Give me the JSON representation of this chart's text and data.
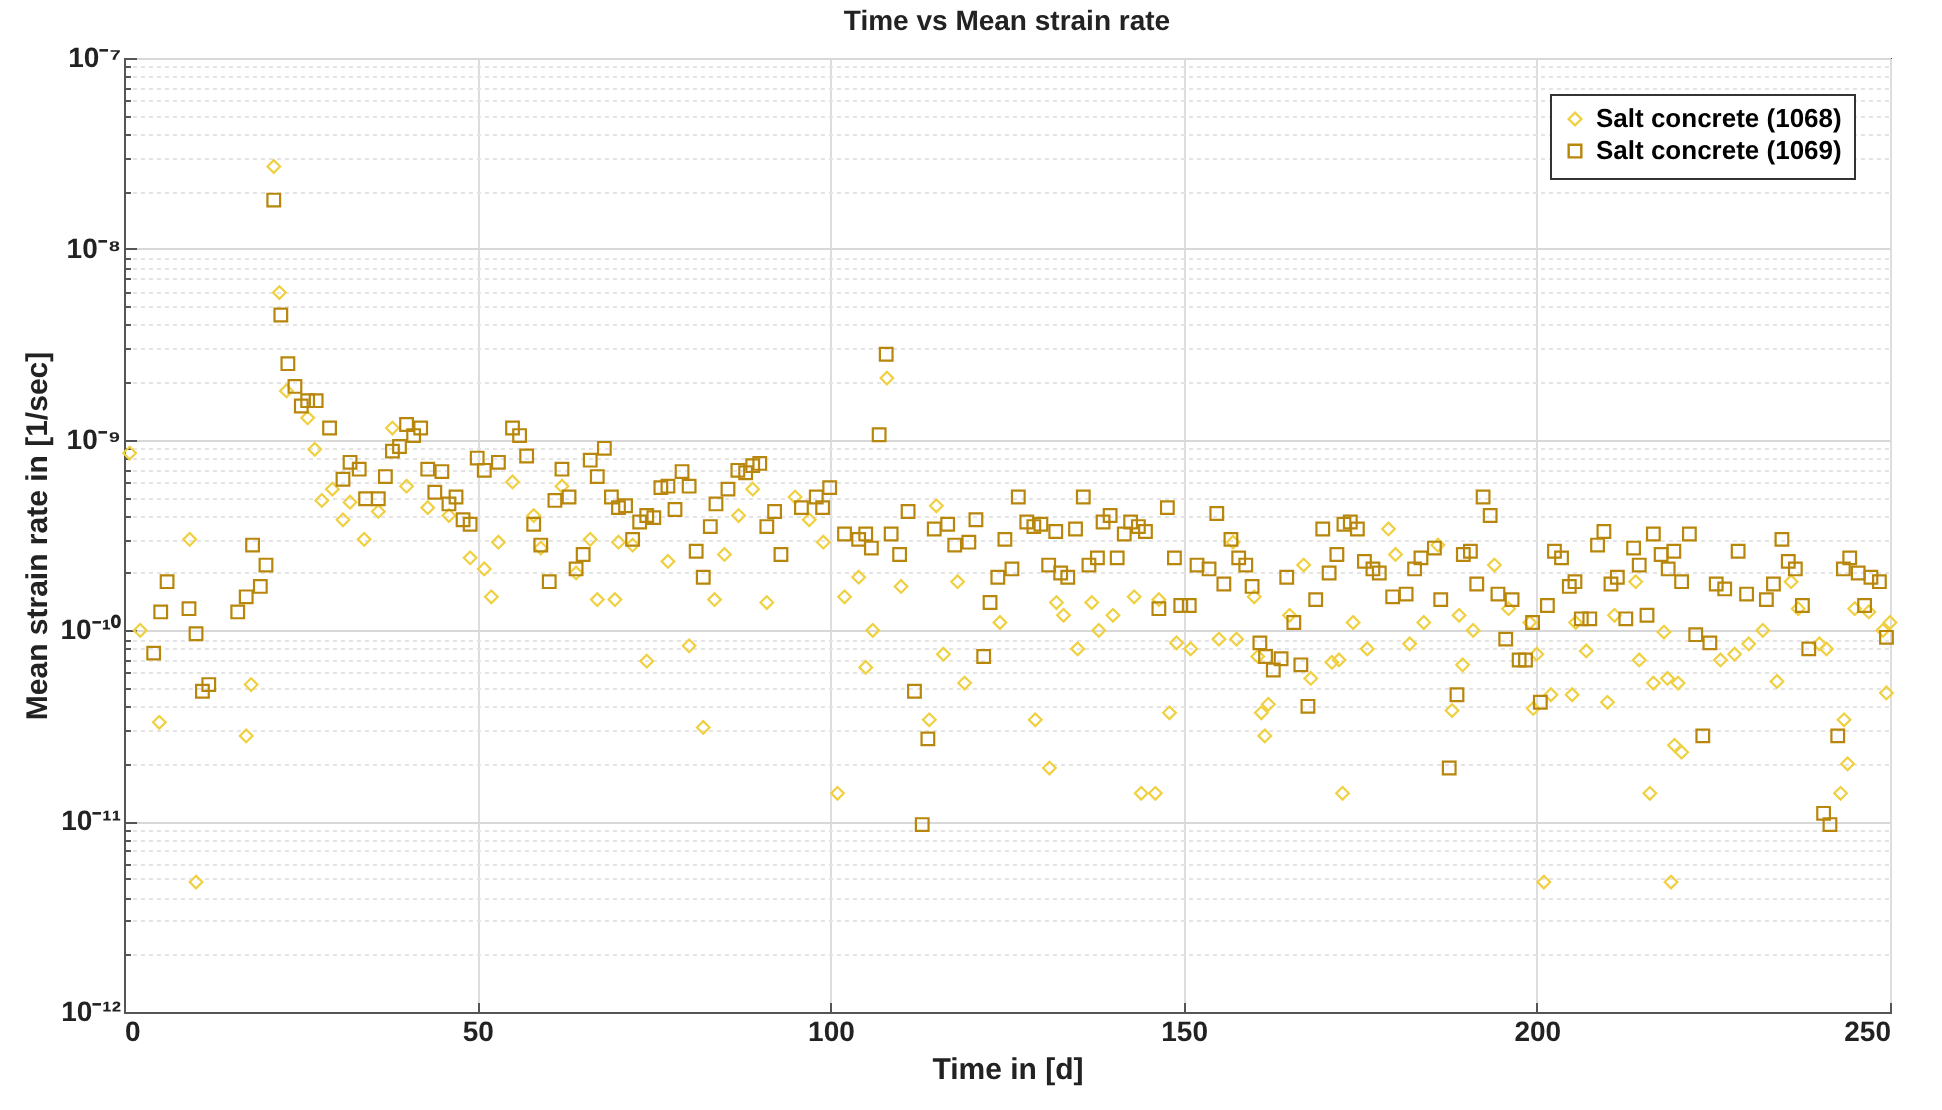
{
  "chart_data": {
    "type": "scatter",
    "title": "Time vs Mean strain rate",
    "xlabel": "Time in [d]",
    "ylabel": "Mean strain rate in [1/sec]",
    "xlim": [
      0,
      250
    ],
    "xticks": [
      0,
      50,
      100,
      150,
      200,
      250
    ],
    "ylim": [
      1e-12,
      1e-07
    ],
    "yticks": [
      {
        "value": 1e-12,
        "label": "10⁻¹²"
      },
      {
        "value": 1e-11,
        "label": "10⁻¹¹"
      },
      {
        "value": 1e-10,
        "label": "10⁻¹⁰"
      },
      {
        "value": 1e-09,
        "label": "10⁻⁹"
      },
      {
        "value": 1e-08,
        "label": "10⁻⁸"
      },
      {
        "value": 1e-07,
        "label": "10⁻⁷"
      }
    ],
    "log": true,
    "grid": true,
    "legend": "top right",
    "series": [
      {
        "name": "Salt concrete (1068)",
        "color": "#f0d040",
        "marker": "diamond",
        "x": [
          0.8,
          2.3,
          5,
          9.3,
          10.2,
          17.3,
          18,
          21.2,
          22,
          23,
          26,
          27,
          28,
          29.5,
          31,
          32,
          34,
          36,
          38,
          40,
          43,
          46,
          49,
          51,
          52,
          53,
          55,
          58,
          59,
          62,
          64,
          66,
          67,
          69.5,
          70,
          72,
          74,
          77,
          80,
          82,
          83.6,
          85,
          87,
          89,
          91,
          95,
          97,
          99,
          101,
          102,
          104,
          105,
          106,
          108,
          110,
          114,
          115,
          116,
          118,
          119,
          124,
          129,
          131,
          132,
          133,
          135,
          137,
          138,
          140,
          143,
          144,
          146,
          146.5,
          148,
          149,
          151,
          155,
          157,
          157.5,
          160,
          160.5,
          161,
          161.5,
          162,
          165,
          167,
          168,
          171,
          172,
          172.5,
          174,
          176,
          179,
          180,
          182,
          184,
          186,
          188,
          189,
          189.5,
          191,
          194,
          196,
          199,
          199.5,
          200,
          201,
          202,
          205,
          205.5,
          207,
          210,
          211,
          214,
          214.5,
          216,
          216.5,
          218,
          218.5,
          219,
          219.5,
          220,
          220.5,
          226,
          228,
          230,
          232,
          234,
          236,
          237,
          240,
          241,
          243,
          243.5,
          244,
          245,
          247,
          249,
          249.5,
          250
        ],
        "values": [
          8.5e-10,
          1e-10,
          3.3e-11,
          3e-10,
          4.8e-12,
          2.8e-11,
          5.2e-11,
          2.7e-08,
          5.9e-09,
          1.8e-09,
          1.3e-09,
          8.9e-10,
          4.8e-10,
          5.5e-10,
          3.8e-10,
          4.7e-10,
          3e-10,
          4.2e-10,
          1.15e-09,
          5.7e-10,
          4.4e-10,
          4e-10,
          2.4e-10,
          2.1e-10,
          1.5e-10,
          2.9e-10,
          6e-10,
          4e-10,
          2.7e-10,
          5.7e-10,
          2e-10,
          3e-10,
          1.45e-10,
          1.45e-10,
          2.9e-10,
          2.8e-10,
          6.9e-11,
          2.3e-10,
          8.3e-11,
          3.1e-11,
          1.45e-10,
          2.5e-10,
          4e-10,
          5.5e-10,
          1.4e-10,
          5e-10,
          3.8e-10,
          2.9e-10,
          1.4e-11,
          1.5e-10,
          1.9e-10,
          6.4e-11,
          1e-10,
          2.1e-09,
          1.7e-10,
          3.4e-11,
          4.5e-10,
          7.5e-11,
          1.8e-10,
          5.3e-11,
          1.1e-10,
          3.4e-11,
          1.9e-11,
          1.4e-10,
          1.2e-10,
          8e-11,
          1.4e-10,
          1e-10,
          1.2e-10,
          1.5e-10,
          1.4e-11,
          1.4e-11,
          1.45e-10,
          3.7e-11,
          8.6e-11,
          8e-11,
          9e-11,
          2.9e-10,
          9e-11,
          1.5e-10,
          7.3e-11,
          3.7e-11,
          2.8e-11,
          4.1e-11,
          1.2e-10,
          2.2e-10,
          5.6e-11,
          6.8e-11,
          7e-11,
          1.4e-11,
          1.1e-10,
          8e-11,
          3.4e-10,
          2.5e-10,
          8.5e-11,
          1.1e-10,
          2.8e-10,
          3.8e-11,
          1.2e-10,
          6.6e-11,
          1e-10,
          2.2e-10,
          1.3e-10,
          1.1e-10,
          3.9e-11,
          7.5e-11,
          4.8e-12,
          4.6e-11,
          4.6e-11,
          1.1e-10,
          7.8e-11,
          4.2e-11,
          1.2e-10,
          1.8e-10,
          7e-11,
          1.4e-11,
          5.3e-11,
          9.8e-11,
          5.6e-11,
          4.8e-12,
          2.5e-11,
          5.3e-11,
          2.3e-11,
          7e-11,
          7.5e-11,
          8.5e-11,
          1e-10,
          5.4e-11,
          1.8e-10,
          1.3e-10,
          8.5e-11,
          8e-11,
          1.4e-11,
          3.4e-11,
          2e-11,
          1.3e-10,
          1.25e-10,
          1e-10,
          4.7e-11,
          1.1e-10
        ]
      },
      {
        "name": "Salt concrete (1069)",
        "color": "#b8860b",
        "marker": "square",
        "x": [
          4.2,
          5.2,
          6.1,
          9.2,
          10.2,
          11.1,
          12,
          16.1,
          17.3,
          18.2,
          19.3,
          20.1,
          21.2,
          22.2,
          23.2,
          24.2,
          25.1,
          26,
          27.2,
          29.1,
          31,
          32,
          33.3,
          34.2,
          36,
          37,
          38,
          39,
          40,
          41,
          42,
          43,
          44,
          45,
          46,
          47,
          48,
          49,
          50,
          51,
          53,
          55,
          56,
          57,
          58,
          59,
          60.2,
          61,
          62,
          63,
          64,
          65,
          66,
          67,
          68,
          69,
          70,
          71,
          72,
          73,
          74,
          75,
          76,
          77,
          78,
          79,
          80,
          81,
          82,
          83,
          83.8,
          85.5,
          86.9,
          88,
          89,
          90,
          91,
          92.1,
          93,
          95.9,
          98,
          98.9,
          99.9,
          102,
          104,
          105,
          105.8,
          106.9,
          107.9,
          108.6,
          109.8,
          111,
          111.9,
          113,
          113.8,
          114.7,
          116.6,
          117.6,
          119.6,
          120.6,
          121.7,
          122.6,
          123.7,
          124.7,
          125.7,
          126.6,
          127.8,
          128.8,
          129.8,
          130.9,
          131.9,
          132.6,
          133.6,
          134.7,
          135.8,
          136.6,
          137.8,
          138.6,
          139.6,
          140.6,
          141.6,
          142.5,
          143.6,
          144.6,
          146.5,
          147.7,
          148.7,
          149.6,
          150.8,
          151.9,
          153.6,
          154.7,
          155.7,
          156.7,
          157.8,
          158.8,
          159.7,
          160.8,
          161.6,
          162.7,
          163.8,
          164.6,
          165.6,
          166.6,
          167.6,
          168.7,
          169.7,
          170.6,
          171.7,
          172.7,
          173.6,
          174.6,
          175.6,
          176.8,
          177.7,
          179.6,
          181.5,
          182.7,
          183.6,
          185.5,
          186.4,
          187.6,
          188.7,
          189.6,
          190.6,
          191.5,
          192.4,
          193.4,
          194.5,
          195.6,
          196.5,
          197.5,
          198.4,
          199.4,
          200.5,
          201.5,
          202.5,
          203.5,
          204.6,
          205.4,
          206.3,
          207.5,
          208.6,
          209.5,
          210.5,
          211.4,
          212.6,
          213.7,
          214.5,
          215.6,
          216.5,
          217.6,
          218.6,
          219.4,
          220.5,
          221.6,
          222.5,
          223.5,
          224.5,
          225.4,
          226.6,
          228.5,
          229.7,
          232.5,
          233.5,
          234.7,
          235.6,
          236.6,
          237.6,
          238.5,
          240.6,
          241.5,
          242.6,
          243.4,
          244.3,
          245.5,
          246.4,
          247.3,
          248.5,
          249.5
        ],
        "values": [
          7.6e-11,
          1.25e-10,
          1.8e-10,
          1.3e-10,
          9.6e-11,
          4.8e-11,
          5.2e-11,
          1.25e-10,
          1.5e-10,
          2.8e-10,
          1.7e-10,
          2.2e-10,
          1.8e-08,
          4.5e-09,
          2.5e-09,
          1.9e-09,
          1.5e-09,
          1.6e-09,
          1.6e-09,
          1.15e-09,
          6.2e-10,
          7.6e-10,
          7e-10,
          4.9e-10,
          4.9e-10,
          6.4e-10,
          8.7e-10,
          9.2e-10,
          1.2e-09,
          1.05e-09,
          1.15e-09,
          7e-10,
          5.3e-10,
          6.8e-10,
          4.6e-10,
          5e-10,
          3.8e-10,
          3.6e-10,
          8e-10,
          6.9e-10,
          7.6e-10,
          1.15e-09,
          1.05e-09,
          8.2e-10,
          3.6e-10,
          2.8e-10,
          1.8e-10,
          4.8e-10,
          7e-10,
          5e-10,
          2.1e-10,
          2.5e-10,
          7.8e-10,
          6.4e-10,
          9e-10,
          5e-10,
          4.4e-10,
          4.5e-10,
          3e-10,
          3.7e-10,
          4e-10,
          3.9e-10,
          5.6e-10,
          5.7e-10,
          4.3e-10,
          6.8e-10,
          5.7e-10,
          2.6e-10,
          1.9e-10,
          3.5e-10,
          4.6e-10,
          5.5e-10,
          6.9e-10,
          6.7e-10,
          7.3e-10,
          7.5e-10,
          3.5e-10,
          4.2e-10,
          2.5e-10,
          4.4e-10,
          5e-10,
          4.4e-10,
          5.6e-10,
          3.2e-10,
          3e-10,
          3.2e-10,
          2.7e-10,
          1.06e-09,
          2.8e-09,
          3.2e-10,
          2.5e-10,
          4.2e-10,
          4.8e-11,
          9.6e-12,
          2.7e-11,
          3.4e-10,
          3.6e-10,
          2.8e-10,
          2.9e-10,
          3.8e-10,
          7.3e-11,
          1.4e-10,
          1.9e-10,
          3e-10,
          2.1e-10,
          5e-10,
          3.7e-10,
          3.5e-10,
          3.6e-10,
          2.2e-10,
          3.3e-10,
          2e-10,
          1.9e-10,
          3.4e-10,
          5e-10,
          2.2e-10,
          2.4e-10,
          3.7e-10,
          4e-10,
          2.4e-10,
          3.2e-10,
          3.7e-10,
          3.5e-10,
          3.3e-10,
          1.3e-10,
          4.4e-10,
          2.4e-10,
          1.35e-10,
          1.35e-10,
          2.2e-10,
          2.1e-10,
          4.1e-10,
          1.75e-10,
          3e-10,
          2.4e-10,
          2.2e-10,
          1.7e-10,
          8.6e-11,
          7.3e-11,
          6.2e-11,
          7.1e-11,
          1.9e-10,
          1.1e-10,
          6.6e-11,
          4e-11,
          1.45e-10,
          3.4e-10,
          2e-10,
          2.5e-10,
          3.6e-10,
          3.7e-10,
          3.4e-10,
          2.3e-10,
          2.1e-10,
          2e-10,
          1.5e-10,
          1.55e-10,
          2.1e-10,
          2.4e-10,
          2.7e-10,
          1.45e-10,
          1.9e-11,
          4.6e-11,
          2.5e-10,
          2.6e-10,
          1.75e-10,
          5e-10,
          4e-10,
          1.55e-10,
          9e-11,
          1.45e-10,
          7e-11,
          7e-11,
          1.1e-10,
          4.2e-11,
          1.35e-10,
          2.6e-10,
          2.4e-10,
          1.7e-10,
          1.8e-10,
          1.15e-10,
          1.15e-10,
          2.8e-10,
          3.3e-10,
          1.75e-10,
          1.9e-10,
          1.15e-10,
          2.7e-10,
          2.2e-10,
          1.2e-10,
          3.2e-10,
          2.5e-10,
          2.1e-10,
          2.6e-10,
          1.8e-10,
          3.2e-10,
          9.5e-11,
          2.8e-11,
          8.6e-11,
          1.75e-10,
          1.65e-10,
          2.6e-10,
          1.55e-10,
          1.45e-10,
          1.75e-10,
          3e-10,
          2.3e-10,
          2.1e-10,
          1.35e-10,
          8e-11,
          1.1e-11,
          9.6e-12,
          2.8e-11,
          2.1e-10,
          2.4e-10,
          2e-10,
          1.35e-10,
          1.9e-10,
          1.8e-10,
          9.2e-11
        ]
      }
    ]
  }
}
